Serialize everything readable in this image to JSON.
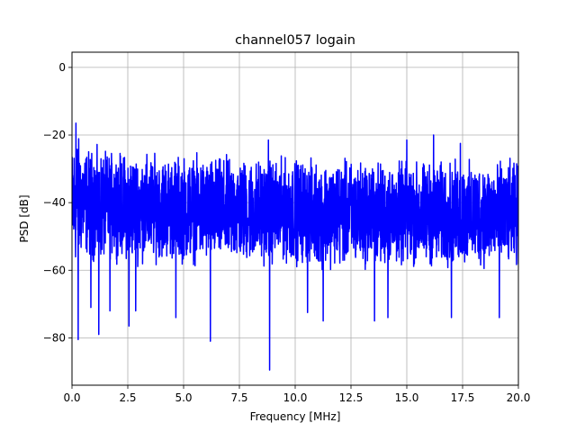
{
  "chart_data": {
    "type": "line",
    "title": "channel057 logain",
    "xlabel": "Frequency [MHz]",
    "ylabel": "PSD [dB]",
    "xlim": [
      0,
      20
    ],
    "ylim": [
      -94,
      4.5
    ],
    "x_ticks": [
      0,
      2.5,
      5,
      7.5,
      10,
      12.5,
      15,
      17.5,
      20
    ],
    "x_tick_labels": [
      "0.0",
      "2.5",
      "5.0",
      "7.5",
      "10.0",
      "12.5",
      "15.0",
      "17.5",
      "20.0"
    ],
    "y_ticks": [
      0,
      -20,
      -40,
      -60,
      -80
    ],
    "y_tick_labels": [
      "0",
      "−20",
      "−40",
      "−60",
      "−80"
    ],
    "grid": true,
    "series": [
      {
        "color": "#0000ff",
        "line_width": 1.5,
        "style": "dense noise band",
        "envelope": {
          "x": [
            0,
            0.2,
            0.5,
            1,
            1.5,
            2,
            2.5,
            3,
            4,
            5,
            6,
            7,
            8,
            9,
            10,
            11,
            12,
            13,
            14,
            15,
            16,
            17,
            18,
            19,
            20
          ],
          "upper": [
            -21,
            -16,
            -22,
            -22,
            -23,
            -23,
            -23.5,
            -23.5,
            -24,
            -24,
            -24.5,
            -24.5,
            -25,
            -25,
            -25,
            -25.5,
            -25.5,
            -25.5,
            -26,
            -26,
            -26,
            -26,
            -26,
            -26,
            -26
          ],
          "lower": [
            -60,
            -62,
            -57,
            -60,
            -59,
            -58,
            -59,
            -60,
            -59,
            -60,
            -60,
            -60,
            -60,
            -60,
            -60,
            -61,
            -61,
            -61,
            -61,
            -61,
            -61,
            -61,
            -61,
            -61,
            -61
          ]
        },
        "peaks": [
          {
            "x": 0.18,
            "y": -16.5
          },
          {
            "x": 8.8,
            "y": -21.5
          },
          {
            "x": 15.0,
            "y": -21.5
          },
          {
            "x": 16.2,
            "y": -20
          },
          {
            "x": 17.4,
            "y": -22.5
          }
        ],
        "dips": [
          {
            "x": 0.28,
            "y": -80.5
          },
          {
            "x": 0.85,
            "y": -71
          },
          {
            "x": 1.2,
            "y": -79
          },
          {
            "x": 1.7,
            "y": -72
          },
          {
            "x": 2.55,
            "y": -76.5
          },
          {
            "x": 2.85,
            "y": -72
          },
          {
            "x": 4.65,
            "y": -74
          },
          {
            "x": 6.2,
            "y": -81
          },
          {
            "x": 8.85,
            "y": -89.5
          },
          {
            "x": 10.55,
            "y": -72.5
          },
          {
            "x": 11.25,
            "y": -75
          },
          {
            "x": 13.55,
            "y": -75
          },
          {
            "x": 14.15,
            "y": -74
          },
          {
            "x": 17.0,
            "y": -74
          },
          {
            "x": 19.15,
            "y": -74
          }
        ]
      }
    ]
  }
}
